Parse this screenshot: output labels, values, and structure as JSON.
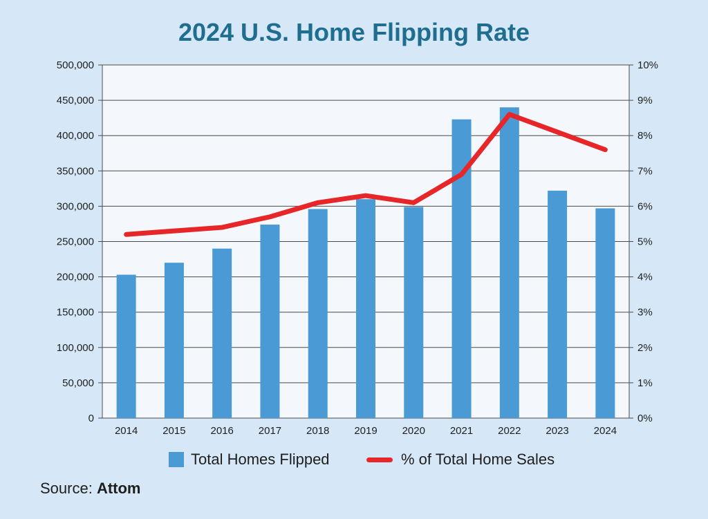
{
  "title": "2024 U.S. Home Flipping Rate",
  "colors": {
    "background": "#d6e8f7",
    "plot_background": "#f4f8fc",
    "title": "#1f6e8f",
    "bar": "#4a9bd5",
    "line": "#e62628",
    "grid": "#4a4a4a"
  },
  "legend": {
    "bars_label": "Total Homes Flipped",
    "line_label": "% of Total Home Sales"
  },
  "source": {
    "prefix": "Source:",
    "name": "Attom"
  },
  "chart_data": {
    "type": "bar",
    "title": "2024 U.S. Home Flipping Rate",
    "categories": [
      "2014",
      "2015",
      "2016",
      "2017",
      "2018",
      "2019",
      "2020",
      "2021",
      "2022",
      "2023",
      "2024"
    ],
    "series": [
      {
        "name": "Total Homes Flipped",
        "type": "bar",
        "axis": "left",
        "values": [
          203000,
          220000,
          240000,
          274000,
          296000,
          310000,
          299000,
          423000,
          440000,
          322000,
          297000
        ]
      },
      {
        "name": "% of Total Home Sales",
        "type": "line",
        "axis": "right",
        "values": [
          5.2,
          5.3,
          5.4,
          5.7,
          6.1,
          6.3,
          6.1,
          6.9,
          8.6,
          8.1,
          7.6
        ]
      }
    ],
    "y_left": {
      "ylim": [
        0,
        500000
      ],
      "ticks": [
        0,
        50000,
        100000,
        150000,
        200000,
        250000,
        300000,
        350000,
        400000,
        450000,
        500000
      ],
      "tick_labels": [
        "0",
        "50,000",
        "100,000",
        "150,000",
        "200,000",
        "250,000",
        "300,000",
        "350,000",
        "400,000",
        "450,000",
        "500,000"
      ]
    },
    "y_right": {
      "ylim": [
        0,
        10
      ],
      "ticks": [
        0,
        1,
        2,
        3,
        4,
        5,
        6,
        7,
        8,
        9,
        10
      ],
      "tick_labels": [
        "0%",
        "1%",
        "2%",
        "3%",
        "4%",
        "5%",
        "6%",
        "7%",
        "8%",
        "9%",
        "10%"
      ]
    },
    "grid": true,
    "legend_position": "bottom-center"
  }
}
